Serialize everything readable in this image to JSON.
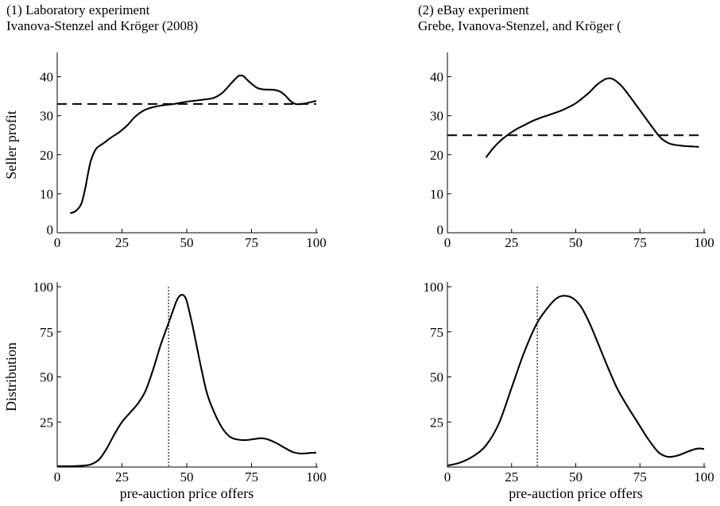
{
  "panels": [
    {
      "title": "(1) Laboratory experiment",
      "subtitle": "Ivanova-Stenzel and Kröger (2008)"
    },
    {
      "title": "(2) eBay experiment",
      "subtitle": "Grebe, Ivanova-Stenzel, and Kröger ("
    }
  ],
  "chart_data": [
    {
      "id": "lab-profit",
      "type": "line",
      "ylabel": "Seller profit",
      "xlabel": "",
      "xlim": [
        0,
        100
      ],
      "ylim": [
        0,
        45
      ],
      "xticks": [
        0,
        25,
        50,
        75,
        100
      ],
      "yticks": [
        0,
        10,
        20,
        30,
        40
      ],
      "series": [
        {
          "style": "solid",
          "x": [
            5,
            7,
            9,
            10,
            11,
            12,
            13,
            15,
            18,
            21,
            24,
            27,
            30,
            33,
            36,
            40,
            45,
            50,
            55,
            60,
            63,
            65,
            67,
            69,
            70,
            71,
            72,
            73,
            75,
            77,
            79,
            81,
            84,
            86,
            88,
            90,
            92,
            94,
            96,
            98,
            100
          ],
          "y": [
            5,
            5.5,
            7,
            9,
            12,
            15.5,
            18.5,
            21.5,
            23,
            24.5,
            25.8,
            27.5,
            29.7,
            31.2,
            32,
            32.6,
            33,
            33.6,
            34,
            34.5,
            35.5,
            36.7,
            38.2,
            39.6,
            40.2,
            40.3,
            40.1,
            39.4,
            38.2,
            37.2,
            36.8,
            36.7,
            36.6,
            36.2,
            35.2,
            33.8,
            33.0,
            33.0,
            33.2,
            33.5,
            33.8
          ]
        },
        {
          "style": "dashed",
          "x": [
            0,
            100
          ],
          "y": [
            33,
            33
          ]
        }
      ]
    },
    {
      "id": "ebay-profit",
      "type": "line",
      "ylabel": "",
      "xlabel": "",
      "xlim": [
        0,
        100
      ],
      "ylim": [
        0,
        45
      ],
      "xticks": [
        0,
        25,
        50,
        75,
        100
      ],
      "yticks": [
        0,
        10,
        20,
        30,
        40
      ],
      "series": [
        {
          "style": "solid",
          "x": [
            15,
            18,
            21,
            24,
            27,
            30,
            33,
            36,
            40,
            45,
            50,
            55,
            58,
            61,
            63,
            65,
            68,
            71,
            74,
            77,
            80,
            83,
            86,
            88,
            90,
            93,
            96,
            98
          ],
          "y": [
            19.3,
            21.8,
            23.8,
            25.3,
            26.6,
            27.6,
            28.6,
            29.4,
            30.3,
            31.5,
            33.2,
            35.8,
            37.8,
            39.2,
            39.6,
            39.2,
            37.5,
            35,
            32.3,
            29.6,
            26.9,
            24.4,
            23.0,
            22.6,
            22.4,
            22.2,
            22.1,
            22.0
          ]
        },
        {
          "style": "dashed",
          "x": [
            0,
            100
          ],
          "y": [
            25,
            25
          ]
        }
      ]
    },
    {
      "id": "lab-distribution",
      "type": "line",
      "ylabel": "Distribution",
      "xlabel": "pre-auction price offers",
      "xlim": [
        0,
        100
      ],
      "ylim": [
        0,
        100
      ],
      "xticks": [
        0,
        25,
        50,
        75,
        100
      ],
      "yticks": [
        25,
        50,
        75,
        100
      ],
      "ytick_labels_shown": [
        25,
        50,
        75,
        100
      ],
      "vline": {
        "x": 43,
        "style": "dotted"
      },
      "series": [
        {
          "style": "solid",
          "x": [
            0,
            5,
            10,
            13,
            16,
            19,
            22,
            25,
            28,
            31,
            34,
            37,
            40,
            43,
            45,
            46,
            47,
            48,
            49,
            50,
            52,
            54,
            56,
            58,
            61,
            64,
            67,
            70,
            73,
            76,
            79,
            82,
            85,
            88,
            91,
            94,
            96,
            98,
            100
          ],
          "y": [
            0.5,
            0.5,
            0.8,
            1.5,
            4,
            10,
            18,
            25,
            30,
            35,
            42,
            54,
            68,
            80,
            88,
            92,
            94.5,
            95.5,
            95,
            92,
            80,
            66,
            52,
            40,
            29,
            21,
            16.5,
            15.2,
            15,
            15.5,
            16,
            15,
            13,
            10.5,
            8.3,
            7.5,
            7.6,
            7.9,
            8
          ]
        }
      ]
    },
    {
      "id": "ebay-distribution",
      "type": "line",
      "ylabel": "",
      "xlabel": "pre-auction price offers",
      "xlim": [
        0,
        100
      ],
      "ylim": [
        0,
        100
      ],
      "xticks": [
        0,
        25,
        50,
        75,
        100
      ],
      "yticks": [
        25,
        50,
        75,
        100
      ],
      "vline": {
        "x": 35,
        "style": "dotted"
      },
      "series": [
        {
          "style": "solid",
          "x": [
            0,
            5,
            10,
            15,
            20,
            25,
            30,
            35,
            40,
            43,
            46,
            49,
            52,
            55,
            58,
            62,
            66,
            70,
            74,
            78,
            82,
            85,
            87,
            90,
            93,
            96,
            98,
            100
          ],
          "y": [
            0.8,
            2.5,
            6,
            12,
            24,
            44,
            64,
            80,
            90,
            94,
            95,
            93.5,
            89,
            81,
            71,
            57,
            44,
            34,
            25,
            16,
            8.5,
            6,
            5.7,
            6.5,
            8.2,
            9.8,
            10.3,
            10
          ]
        }
      ]
    }
  ]
}
